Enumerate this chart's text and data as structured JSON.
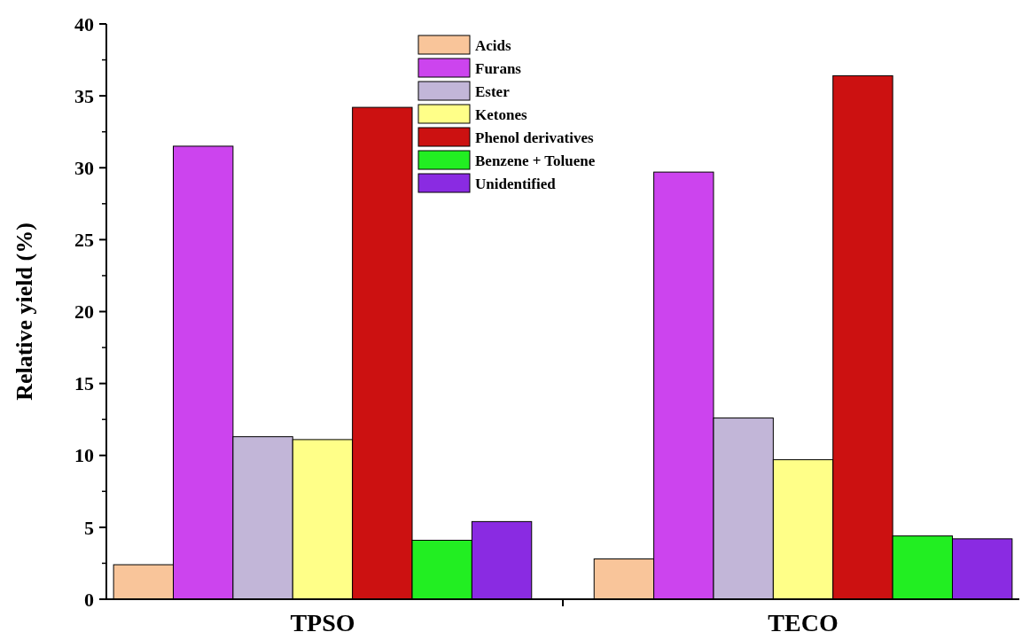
{
  "chart_data": {
    "type": "bar",
    "ylabel": "Relative yield (%)",
    "categories": [
      "TPSO",
      "TECO"
    ],
    "series": [
      {
        "name": "Acids",
        "color": "#f9c59a",
        "values": [
          2.4,
          2.8
        ]
      },
      {
        "name": "Furans",
        "color": "#cc44ee",
        "values": [
          31.5,
          29.7
        ]
      },
      {
        "name": "Ester",
        "color": "#c2b6d8",
        "values": [
          11.3,
          12.6
        ]
      },
      {
        "name": "Ketones",
        "color": "#ffff88",
        "values": [
          11.1,
          9.7
        ]
      },
      {
        "name": "Phenol derivatives",
        "color": "#cc1111",
        "values": [
          34.2,
          36.4
        ]
      },
      {
        "name": "Benzene + Toluene",
        "color": "#22ee22",
        "values": [
          4.1,
          4.4
        ]
      },
      {
        "name": "Unidentified",
        "color": "#8a2be2",
        "values": [
          5.4,
          4.2
        ]
      }
    ],
    "ylim": [
      0,
      40
    ],
    "yticks": [
      0,
      5,
      10,
      15,
      20,
      25,
      30,
      35,
      40
    ],
    "grid": false,
    "legend": "top"
  }
}
